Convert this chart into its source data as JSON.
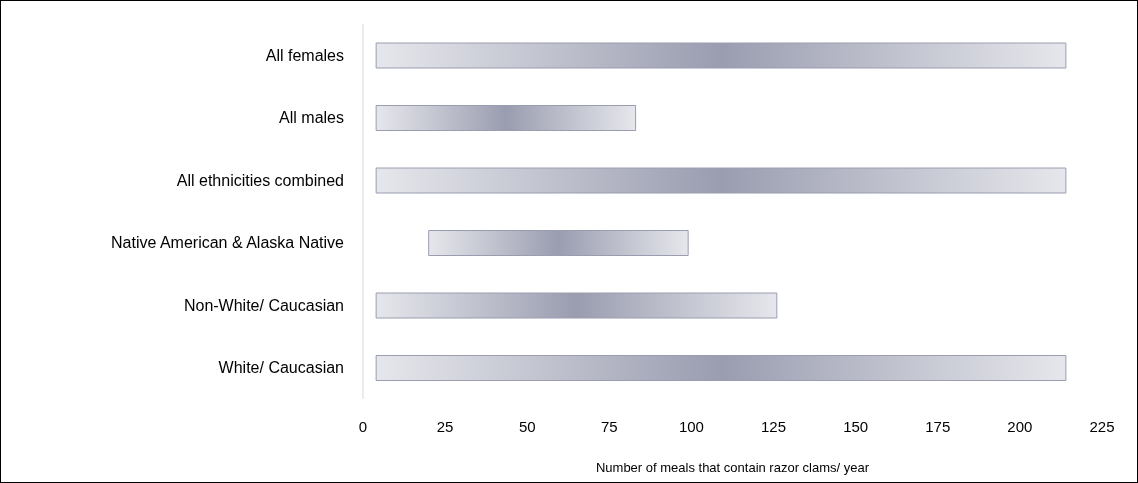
{
  "chart_data": {
    "type": "bar",
    "orientation": "horizontal",
    "xlabel": "Number of meals that contain razor clams/ year",
    "categories": [
      "All females",
      "All males",
      "All ethnicities combined",
      "Native American & Alaska Native",
      "Non-White/ Caucasian",
      "White/ Caucasian"
    ],
    "base": [
      4,
      4,
      4,
      20,
      4,
      4
    ],
    "values": [
      210,
      79,
      210,
      79,
      122,
      210
    ],
    "color": "#9a9db0",
    "xlim": [
      0,
      225
    ],
    "xticks": [
      0,
      25,
      50,
      75,
      100,
      125,
      150,
      175,
      200,
      225
    ],
    "grid": false,
    "legend": false
  }
}
